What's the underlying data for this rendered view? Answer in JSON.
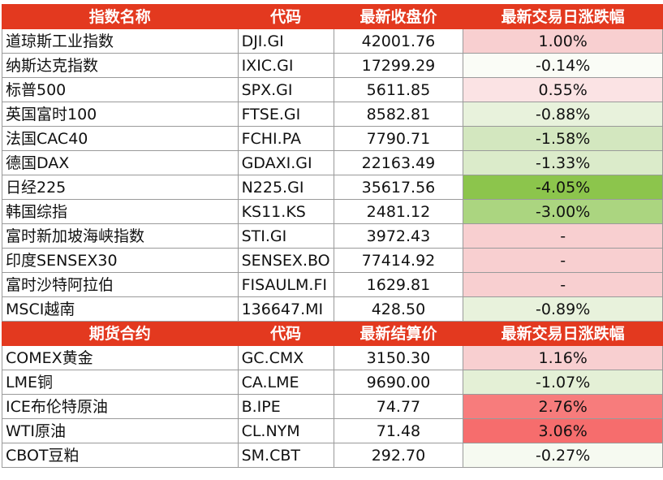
{
  "index_section": {
    "headers": [
      "指数名称",
      "代码",
      "最新收盘价",
      "最新交易日涨跌幅"
    ],
    "rows": [
      {
        "name": "道琼斯工业指数",
        "code": "DJI.GI",
        "price": "42001.76",
        "change": "1.00%",
        "bg": "#f8cfd0"
      },
      {
        "name": "纳斯达克指数",
        "code": "IXIC.GI",
        "price": "17299.29",
        "change": "-0.14%",
        "bg": "#fafcf6"
      },
      {
        "name": "标普500",
        "code": "SPX.GI",
        "price": "5611.85",
        "change": "0.55%",
        "bg": "#fbe3e4"
      },
      {
        "name": "英国富时100",
        "code": "FTSE.GI",
        "price": "8582.81",
        "change": "-0.88%",
        "bg": "#e8f2dc"
      },
      {
        "name": "法国CAC40",
        "code": "FCHI.PA",
        "price": "7790.71",
        "change": "-1.58%",
        "bg": "#d3e7bf"
      },
      {
        "name": "德国DAX",
        "code": "GDAXI.GI",
        "price": "22163.49",
        "change": "-1.33%",
        "bg": "#dbebca"
      },
      {
        "name": "日经225",
        "code": "N225.GI",
        "price": "35617.56",
        "change": "-4.05%",
        "bg": "#8cc54c"
      },
      {
        "name": "韩国综指",
        "code": "KS11.KS",
        "price": "2481.12",
        "change": "-3.00%",
        "bg": "#abd580"
      },
      {
        "name": "富时新加坡海峡指数",
        "code": "STI.GI",
        "price": "3972.43",
        "change": "-",
        "bg": "#f8cfd0"
      },
      {
        "name": "印度SENSEX30",
        "code": "SENSEX.BO",
        "price": "77414.92",
        "change": "-",
        "bg": "#f8cfd0"
      },
      {
        "name": "富时沙特阿拉伯",
        "code": "FISAULM.FI",
        "price": "1629.81",
        "change": "-",
        "bg": "#f8cfd0"
      },
      {
        "name": "MSCI越南",
        "code": "136647.MI",
        "price": "428.50",
        "change": "-0.89%",
        "bg": "#e8f2dc"
      }
    ]
  },
  "futures_section": {
    "headers": [
      "期货合约",
      "代码",
      "最新结算价",
      "最新交易日涨跌幅"
    ],
    "rows": [
      {
        "name": "COMEX黄金",
        "code": "GC.CMX",
        "price": "3150.30",
        "change": "1.16%",
        "bg": "#f8cfd0"
      },
      {
        "name": "LME铜",
        "code": "CA.LME",
        "price": "9690.00",
        "change": "-1.07%",
        "bg": "#e4f0d6"
      },
      {
        "name": "ICE布伦特原油",
        "code": "B.IPE",
        "price": "74.77",
        "change": "2.76%",
        "bg": "#f77c7c"
      },
      {
        "name": "WTI原油",
        "code": "CL.NYM",
        "price": "71.48",
        "change": "3.06%",
        "bg": "#f66d6d"
      },
      {
        "name": "CBOT豆粕",
        "code": "SM.CBT",
        "price": "292.70",
        "change": "-0.27%",
        "bg": "#f6faf1"
      }
    ]
  }
}
